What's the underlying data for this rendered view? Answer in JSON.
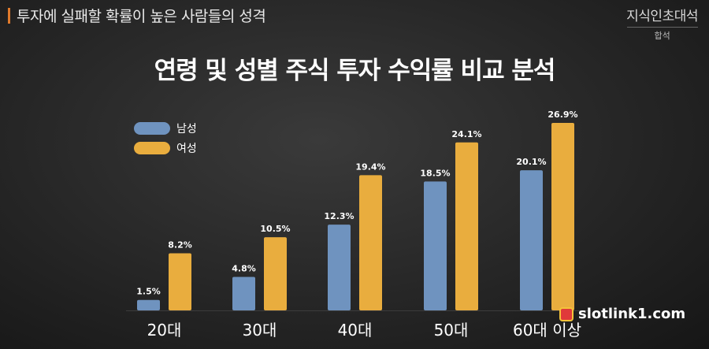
{
  "header": {
    "title": "투자에 실패할 확률이 높은 사람들의 성격",
    "channel_name": "지식인초대석",
    "channel_tag": "합석"
  },
  "watermark": {
    "text": "slotlink1.com"
  },
  "colors": {
    "male": "#6f93bf",
    "female": "#e9ad3e",
    "accent": "#e07a2c"
  },
  "chart_data": {
    "type": "bar",
    "title": "연령 및 성별 주식 투자 수익률 비교 분석",
    "categories": [
      "20대",
      "30대",
      "40대",
      "50대",
      "60대 이상"
    ],
    "series": [
      {
        "name": "남성",
        "values": [
          1.5,
          4.8,
          12.3,
          18.5,
          20.1
        ],
        "labels": [
          "1.5%",
          "4.8%",
          "12.3%",
          "18.5%",
          "20.1%"
        ]
      },
      {
        "name": "여성",
        "values": [
          8.2,
          10.5,
          19.4,
          24.1,
          26.9
        ],
        "labels": [
          "8.2%",
          "10.5%",
          "19.4%",
          "24.1%",
          "26.9%"
        ]
      }
    ],
    "legend": "top-left",
    "grid": false,
    "ylim": [
      0,
      26.9
    ]
  }
}
